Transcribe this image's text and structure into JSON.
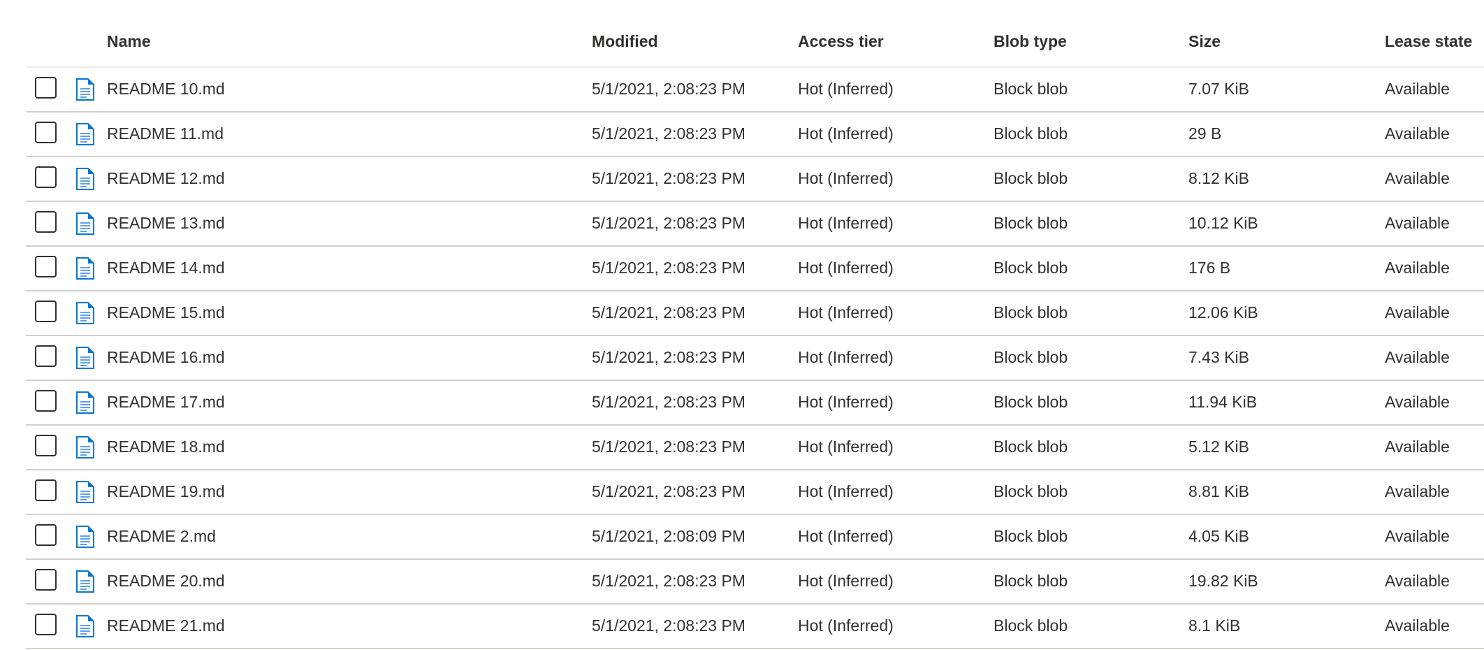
{
  "columns": {
    "name": "Name",
    "modified": "Modified",
    "access_tier": "Access tier",
    "blob_type": "Blob type",
    "size": "Size",
    "lease_state": "Lease state"
  },
  "accent_color": "#0078d4",
  "rows": [
    {
      "name": "README 10.md",
      "modified": "5/1/2021, 2:08:23 PM",
      "access_tier": "Hot (Inferred)",
      "blob_type": "Block blob",
      "size": "7.07 KiB",
      "lease_state": "Available"
    },
    {
      "name": "README 11.md",
      "modified": "5/1/2021, 2:08:23 PM",
      "access_tier": "Hot (Inferred)",
      "blob_type": "Block blob",
      "size": "29 B",
      "lease_state": "Available"
    },
    {
      "name": "README 12.md",
      "modified": "5/1/2021, 2:08:23 PM",
      "access_tier": "Hot (Inferred)",
      "blob_type": "Block blob",
      "size": "8.12 KiB",
      "lease_state": "Available"
    },
    {
      "name": "README 13.md",
      "modified": "5/1/2021, 2:08:23 PM",
      "access_tier": "Hot (Inferred)",
      "blob_type": "Block blob",
      "size": "10.12 KiB",
      "lease_state": "Available"
    },
    {
      "name": "README 14.md",
      "modified": "5/1/2021, 2:08:23 PM",
      "access_tier": "Hot (Inferred)",
      "blob_type": "Block blob",
      "size": "176 B",
      "lease_state": "Available"
    },
    {
      "name": "README 15.md",
      "modified": "5/1/2021, 2:08:23 PM",
      "access_tier": "Hot (Inferred)",
      "blob_type": "Block blob",
      "size": "12.06 KiB",
      "lease_state": "Available"
    },
    {
      "name": "README 16.md",
      "modified": "5/1/2021, 2:08:23 PM",
      "access_tier": "Hot (Inferred)",
      "blob_type": "Block blob",
      "size": "7.43 KiB",
      "lease_state": "Available"
    },
    {
      "name": "README 17.md",
      "modified": "5/1/2021, 2:08:23 PM",
      "access_tier": "Hot (Inferred)",
      "blob_type": "Block blob",
      "size": "11.94 KiB",
      "lease_state": "Available"
    },
    {
      "name": "README 18.md",
      "modified": "5/1/2021, 2:08:23 PM",
      "access_tier": "Hot (Inferred)",
      "blob_type": "Block blob",
      "size": "5.12 KiB",
      "lease_state": "Available"
    },
    {
      "name": "README 19.md",
      "modified": "5/1/2021, 2:08:23 PM",
      "access_tier": "Hot (Inferred)",
      "blob_type": "Block blob",
      "size": "8.81 KiB",
      "lease_state": "Available"
    },
    {
      "name": "README 2.md",
      "modified": "5/1/2021, 2:08:09 PM",
      "access_tier": "Hot (Inferred)",
      "blob_type": "Block blob",
      "size": "4.05 KiB",
      "lease_state": "Available"
    },
    {
      "name": "README 20.md",
      "modified": "5/1/2021, 2:08:23 PM",
      "access_tier": "Hot (Inferred)",
      "blob_type": "Block blob",
      "size": "19.82 KiB",
      "lease_state": "Available"
    },
    {
      "name": "README 21.md",
      "modified": "5/1/2021, 2:08:23 PM",
      "access_tier": "Hot (Inferred)",
      "blob_type": "Block blob",
      "size": "8.1 KiB",
      "lease_state": "Available"
    }
  ]
}
